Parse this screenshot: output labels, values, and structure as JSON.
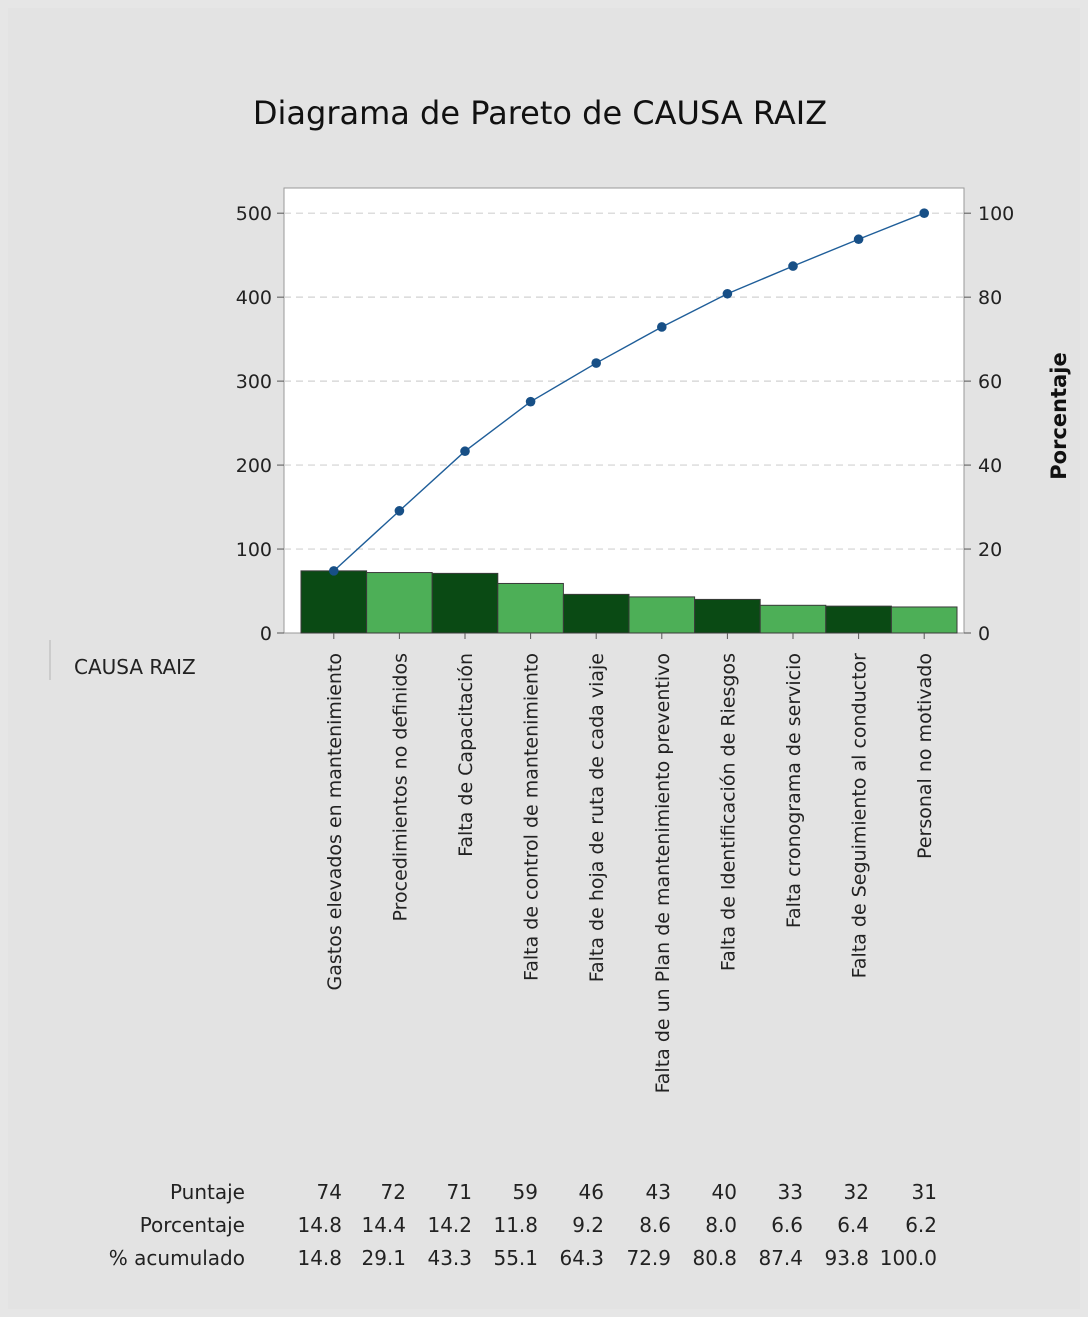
{
  "chart_data": {
    "type": "bar",
    "title": "Diagrama de Pareto de CAUSA RAIZ",
    "xlabel": "CAUSA RAIZ",
    "ylabel": "",
    "y2label": "Porcentaje",
    "ylim": [
      0,
      530
    ],
    "y2lim": [
      0,
      106
    ],
    "yticks": [
      0,
      100,
      200,
      300,
      400,
      500
    ],
    "y2ticks": [
      0,
      20,
      40,
      60,
      80,
      100
    ],
    "grid": "horizontal dashed",
    "categories": [
      "Gastos elevados en mantenimiento",
      "Procedimientos no definidos",
      "Falta de Capacitación",
      "Falta de control de mantenimiento",
      "Falta de hoja de ruta de cada viaje",
      "Falta de un Plan de mantenimiento preventivo",
      "Falta de Identificación de Riesgos",
      "Falta cronograma de servicio",
      "Falta de Seguimiento al conductor",
      "Personal no motivado"
    ],
    "series": [
      {
        "values": [
          74,
          72,
          71,
          59,
          46,
          43,
          40,
          33,
          32,
          31
        ],
        "kind": "bar",
        "colors": [
          "#0a4a14",
          "#4daf57"
        ]
      },
      {
        "values": [
          14.8,
          29.1,
          43.3,
          55.1,
          64.3,
          72.9,
          80.8,
          87.4,
          93.8,
          100.0
        ],
        "kind": "line",
        "axis": "right",
        "color": "#1f5e99"
      }
    ],
    "table": {
      "row_labels": [
        "Puntaje",
        "Porcentaje",
        "% acumulado"
      ],
      "rows": [
        [
          "74",
          "72",
          "71",
          "59",
          "46",
          "43",
          "40",
          "33",
          "32",
          "31"
        ],
        [
          "14.8",
          "14.4",
          "14.2",
          "11.8",
          "9.2",
          "8.6",
          "8.0",
          "6.6",
          "6.4",
          "6.2"
        ],
        [
          "14.8",
          "29.1",
          "43.3",
          "55.1",
          "64.3",
          "72.9",
          "80.8",
          "87.4",
          "93.8",
          "100.0"
        ]
      ]
    }
  }
}
